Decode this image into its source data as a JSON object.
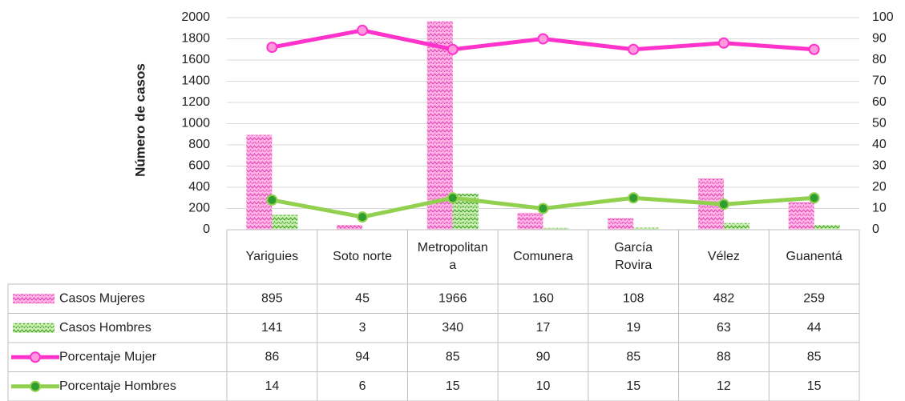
{
  "chart_data": {
    "type": "bar",
    "y_label": "Número de casos",
    "categories": [
      "Yariguies",
      "Soto norte",
      "Metropolitana",
      "Comunera",
      "García Rovira",
      "Vélez",
      "Guanentá"
    ],
    "series": [
      {
        "name": "Casos Mujeres",
        "color": "#ff66cc",
        "values": [
          895,
          45,
          1966,
          160,
          108,
          482,
          259
        ]
      },
      {
        "name": "Casos Hombres",
        "color": "#4caf32",
        "values": [
          141,
          3,
          340,
          17,
          19,
          63,
          44
        ]
      },
      {
        "name": "Porcentaje Mujer",
        "type": "line",
        "axis": "y2",
        "color": "#ff33cc",
        "values": [
          86,
          94,
          85,
          90,
          85,
          88,
          85
        ]
      },
      {
        "name": "Porcentaje Hombres",
        "type": "line",
        "axis": "y2",
        "color": "#92d050",
        "values": [
          14,
          6,
          15,
          10,
          15,
          12,
          15
        ]
      }
    ],
    "ylim": [
      0,
      2000
    ],
    "yticks": [
      0,
      200,
      400,
      600,
      800,
      1000,
      1200,
      1400,
      1600,
      1800,
      2000
    ],
    "y2lim": [
      0,
      100
    ],
    "y2ticks": [
      0,
      10,
      20,
      30,
      40,
      50,
      60,
      70,
      80,
      90,
      100
    ],
    "grid": true,
    "data_table": true
  }
}
